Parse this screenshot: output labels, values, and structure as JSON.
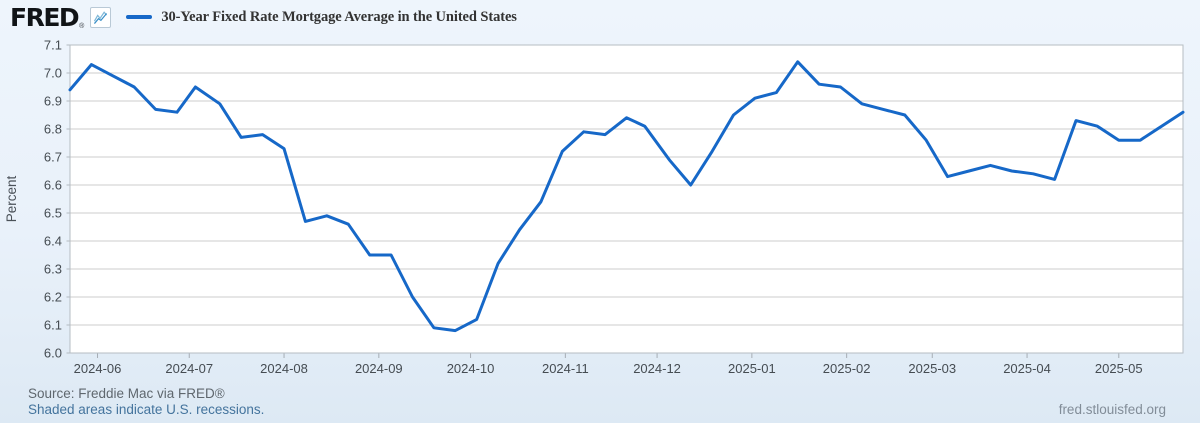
{
  "branding": {
    "logo": "FRED",
    "registered_mark": "®"
  },
  "header": {
    "series_title": "30-Year Fixed Rate Mortgage Average in the United States"
  },
  "chart_data": {
    "type": "line",
    "title": "30-Year Fixed Rate Mortgage Average in the United States",
    "xlabel": "",
    "ylabel": "Percent",
    "ylim": [
      6.0,
      7.1
    ],
    "y_tick_step": 0.1,
    "y_tick_labels": [
      "7.1",
      "7.0",
      "6.9",
      "6.8",
      "6.7",
      "6.6",
      "6.5",
      "6.4",
      "6.3",
      "6.2",
      "6.1",
      "6.0"
    ],
    "x_tick_labels": [
      "2024-06",
      "2024-07",
      "2024-08",
      "2024-09",
      "2024-10",
      "2024-11",
      "2024-12",
      "2025-01",
      "2025-02",
      "2025-03",
      "2025-04",
      "2025-05"
    ],
    "grid": true,
    "legend_position": "top",
    "line_color": "#1668c8",
    "grid_color": "#cccccc",
    "plot_background": "#ffffff",
    "series": [
      {
        "name": "30-Year Fixed Rate Mortgage Average in the United States",
        "x": [
          "2024-05-23",
          "2024-05-30",
          "2024-06-06",
          "2024-06-13",
          "2024-06-20",
          "2024-06-27",
          "2024-07-03",
          "2024-07-11",
          "2024-07-18",
          "2024-07-25",
          "2024-08-01",
          "2024-08-08",
          "2024-08-15",
          "2024-08-22",
          "2024-08-29",
          "2024-09-05",
          "2024-09-12",
          "2024-09-19",
          "2024-09-26",
          "2024-10-03",
          "2024-10-10",
          "2024-10-17",
          "2024-10-24",
          "2024-10-31",
          "2024-11-07",
          "2024-11-14",
          "2024-11-21",
          "2024-11-27",
          "2024-12-05",
          "2024-12-12",
          "2024-12-19",
          "2024-12-26",
          "2025-01-02",
          "2025-01-09",
          "2025-01-16",
          "2025-01-23",
          "2025-01-30",
          "2025-02-06",
          "2025-02-13",
          "2025-02-20",
          "2025-02-27",
          "2025-03-06",
          "2025-03-13",
          "2025-03-20",
          "2025-03-27",
          "2025-04-03",
          "2025-04-10",
          "2025-04-17",
          "2025-04-24",
          "2025-05-01",
          "2025-05-08",
          "2025-05-15",
          "2025-05-22"
        ],
        "values": [
          6.94,
          7.03,
          6.99,
          6.95,
          6.87,
          6.86,
          6.95,
          6.89,
          6.77,
          6.78,
          6.73,
          6.47,
          6.49,
          6.46,
          6.35,
          6.35,
          6.2,
          6.09,
          6.08,
          6.12,
          6.32,
          6.44,
          6.54,
          6.72,
          6.79,
          6.78,
          6.84,
          6.81,
          6.69,
          6.6,
          6.72,
          6.85,
          6.91,
          6.93,
          7.04,
          6.96,
          6.95,
          6.89,
          6.87,
          6.85,
          6.76,
          6.63,
          6.65,
          6.67,
          6.65,
          6.64,
          6.62,
          6.83,
          6.81,
          6.76,
          6.76,
          6.81,
          6.86
        ]
      }
    ]
  },
  "footer": {
    "source": "Source: Freddie Mac via FRED®",
    "note": "Shaded areas indicate U.S. recessions.",
    "site": "fred.stlouisfed.org"
  }
}
